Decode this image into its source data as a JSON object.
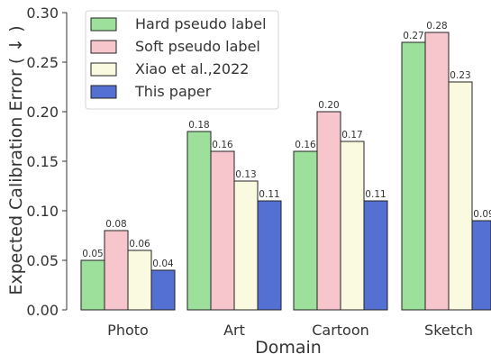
{
  "chart_data": {
    "type": "bar",
    "xlabel": "Domain",
    "ylabel": "Expected Calibration Error ( ↓ )",
    "ylim": [
      0,
      0.3
    ],
    "yticks": [
      "0.00",
      "0.05",
      "0.10",
      "0.15",
      "0.20",
      "0.25",
      "0.30"
    ],
    "categories": [
      "Photo",
      "Art",
      "Cartoon",
      "Sketch"
    ],
    "grid": false,
    "legend_position": "top-left",
    "series": [
      {
        "name": "Hard pseudo label",
        "color": "#9de09b",
        "values": [
          0.05,
          0.18,
          0.16,
          0.27
        ],
        "labels": [
          "0.05",
          "0.18",
          "0.16",
          "0.27"
        ]
      },
      {
        "name": "Soft pseudo label",
        "color": "#f7c6cd",
        "values": [
          0.08,
          0.16,
          0.2,
          0.28
        ],
        "labels": [
          "0.08",
          "0.16",
          "0.20",
          "0.28"
        ]
      },
      {
        "name": "Xiao et al.,2022",
        "color": "#fafae0",
        "values": [
          0.06,
          0.13,
          0.17,
          0.23
        ],
        "labels": [
          "0.06",
          "0.13",
          "0.17",
          "0.23"
        ]
      },
      {
        "name": "This paper",
        "color": "#5470d3",
        "values": [
          0.04,
          0.11,
          0.11,
          0.09
        ],
        "labels": [
          "0.04",
          "0.11",
          "0.11",
          "0.09"
        ]
      }
    ]
  }
}
